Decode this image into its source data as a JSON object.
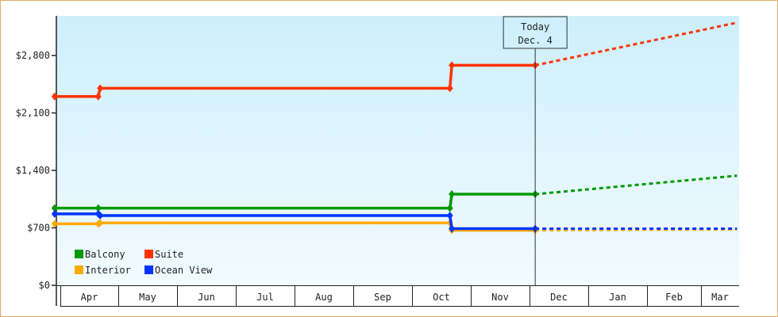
{
  "chart_data": {
    "type": "line",
    "title": "",
    "xlabel": "",
    "ylabel": "",
    "ylim": [
      0,
      3300
    ],
    "y_ticks": [
      "$0",
      "$700",
      "$1,400",
      "$2,100",
      "$2,800"
    ],
    "y_tick_values": [
      0,
      700,
      1400,
      2100,
      2800
    ],
    "x_ticks": [
      "Apr",
      "May",
      "Jun",
      "Jul",
      "Aug",
      "Sep",
      "Oct",
      "Nov",
      "Dec",
      "Jan",
      "Feb",
      "Mar"
    ],
    "grid": false,
    "background_gradient": [
      "#cdeffb",
      "#f2fbff"
    ],
    "legend_position": "bottom-left",
    "today_marker": {
      "label": "Today",
      "date_label": "Dec. 4",
      "date": "Dec 4"
    },
    "series": [
      {
        "name": "Balcony",
        "color": "#009900",
        "points": [
          [
            "Mar 29",
            940
          ],
          [
            "Apr 21",
            940
          ],
          [
            "Oct 21",
            940
          ],
          [
            "Oct 22",
            1110
          ],
          [
            "Dec 4",
            1110
          ]
        ],
        "forecast": [
          [
            "Dec 4",
            1110
          ],
          [
            "Mar 20",
            1335
          ]
        ]
      },
      {
        "name": "Suite",
        "color": "#ff3300",
        "points": [
          [
            "Mar 29",
            2300
          ],
          [
            "Apr 21",
            2300
          ],
          [
            "Apr 22",
            2400
          ],
          [
            "Oct 21",
            2400
          ],
          [
            "Oct 22",
            2680
          ],
          [
            "Dec 4",
            2680
          ]
        ],
        "forecast": [
          [
            "Dec 4",
            2680
          ],
          [
            "Mar 20",
            3200
          ]
        ]
      },
      {
        "name": "Interior",
        "color": "#ffaa00",
        "points": [
          [
            "Mar 29",
            750
          ],
          [
            "Apr 21",
            750
          ],
          [
            "Apr 22",
            760
          ],
          [
            "Oct 21",
            760
          ],
          [
            "Oct 22",
            670
          ],
          [
            "Dec 4",
            670
          ]
        ],
        "forecast": [
          [
            "Dec 4",
            670
          ],
          [
            "Mar 20",
            680
          ]
        ]
      },
      {
        "name": "Ocean View",
        "color": "#0033ff",
        "points": [
          [
            "Mar 29",
            870
          ],
          [
            "Apr 21",
            870
          ],
          [
            "Apr 22",
            850
          ],
          [
            "Oct 21",
            850
          ],
          [
            "Oct 22",
            690
          ],
          [
            "Dec 4",
            690
          ]
        ],
        "forecast": [
          [
            "Dec 4",
            690
          ],
          [
            "Mar 20",
            690
          ]
        ]
      }
    ]
  }
}
